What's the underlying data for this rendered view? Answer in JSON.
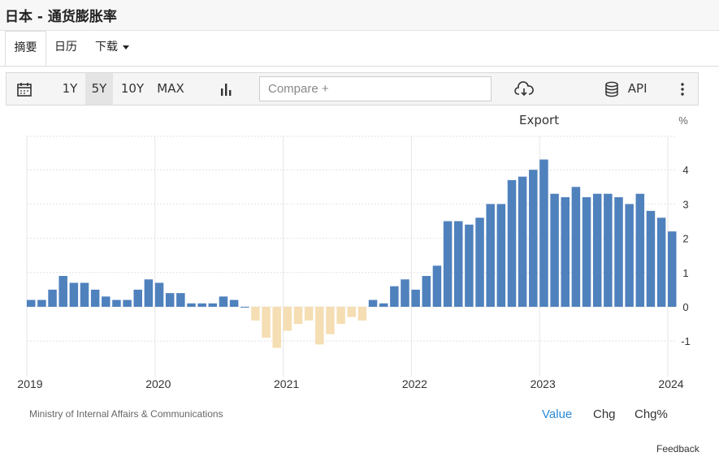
{
  "page": {
    "title": "日本 - 通货膨胀率"
  },
  "tabs": [
    {
      "label": "摘要",
      "active": true
    },
    {
      "label": "日历",
      "active": false
    },
    {
      "label": "下载",
      "active": false,
      "dropdown": true
    }
  ],
  "toolbar": {
    "ranges": [
      "1Y",
      "5Y",
      "10Y",
      "MAX"
    ],
    "selected_range": "5Y",
    "compare_placeholder": "Compare +",
    "export_label": "Export",
    "api_label": "API"
  },
  "footer": {
    "source": "Ministry of Internal Affairs & Communications",
    "modes": [
      "Value",
      "Chg",
      "Chg%"
    ],
    "active_mode": "Value",
    "feedback": "Feedback"
  },
  "colors": {
    "positive": "#4f81bd",
    "negative": "#f5deb3",
    "active_mode": "#2a8ad6"
  },
  "chart_data": {
    "type": "bar",
    "unit_label": "%",
    "x_tick_labels": [
      "2019",
      "2020",
      "2021",
      "2022",
      "2023",
      "2024"
    ],
    "ylim": [
      -1.25,
      4.75
    ],
    "y_ticks": [
      -1,
      0,
      1,
      2,
      3,
      4
    ],
    "grid": true,
    "y_axis_position": "right",
    "series": [
      {
        "values": [
          0.2,
          0.2,
          0.5,
          0.9,
          0.7,
          0.7,
          0.5,
          0.3,
          0.2,
          0.2,
          0.5,
          0.8,
          0.7,
          0.4,
          0.4,
          0.1,
          0.1,
          0.1,
          0.3,
          0.2,
          0.0,
          -0.4,
          -0.9,
          -1.2,
          -0.7,
          -0.5,
          -0.4,
          -1.1,
          -0.8,
          -0.5,
          -0.3,
          -0.4,
          0.2,
          0.1,
          0.6,
          0.8,
          0.5,
          0.9,
          1.2,
          2.5,
          2.5,
          2.4,
          2.6,
          3.0,
          3.0,
          3.7,
          3.8,
          4.0,
          4.3,
          3.3,
          3.2,
          3.5,
          3.2,
          3.3,
          3.3,
          3.2,
          3.0,
          3.3,
          2.8,
          2.6,
          2.2
        ]
      }
    ]
  }
}
